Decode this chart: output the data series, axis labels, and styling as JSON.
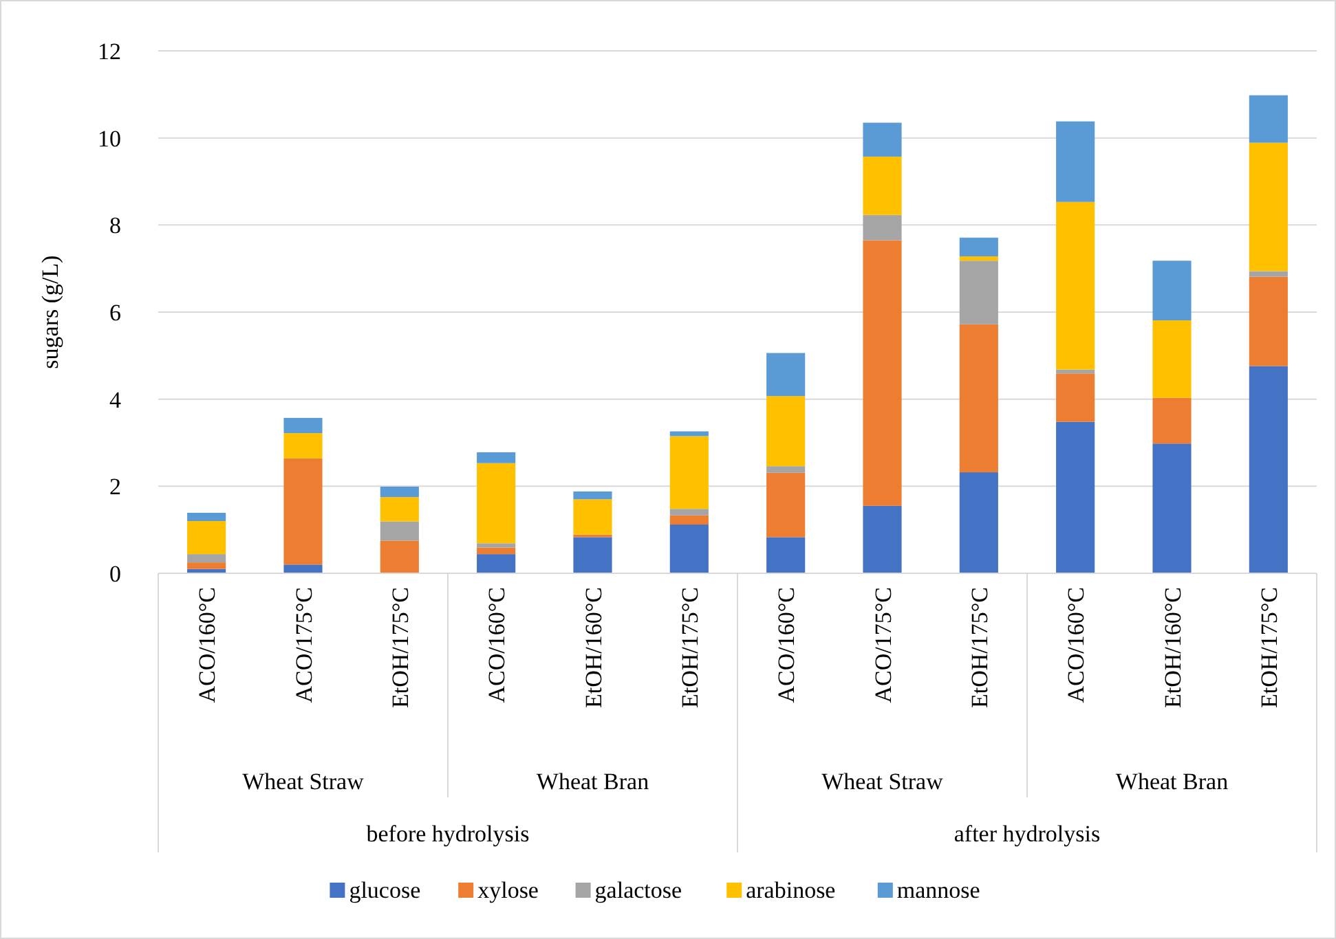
{
  "chart_data": {
    "type": "bar",
    "stacked": true,
    "ylabel": "sugars (g/L)",
    "categories": [
      "ACO/160°C",
      "ACO/175°C",
      "EtOH/175°C",
      "ACO/160°C",
      "EtOH/160°C",
      "EtOH/175°C",
      "ACO/160°C",
      "ACO/175°C",
      "EtOH/175°C",
      "ACO/160°C",
      "EtOH/160°C",
      "EtOH/175°C"
    ],
    "series": [
      {
        "name": "glucose",
        "color": "#4472c4",
        "values": [
          0.1,
          0.2,
          0,
          0.44,
          0.83,
          1.12,
          0.83,
          1.55,
          2.32,
          3.48,
          2.98,
          4.76
        ]
      },
      {
        "name": "xylose",
        "color": "#ed7d31",
        "values": [
          0.15,
          2.44,
          0.75,
          0.15,
          0.06,
          0.21,
          1.48,
          6.1,
          3.4,
          1.11,
          1.05,
          2.05
        ]
      },
      {
        "name": "galactose",
        "color": "#a5a5a5",
        "values": [
          0.19,
          null,
          0.44,
          0.1,
          null,
          0.15,
          0.15,
          0.58,
          1.46,
          0.09,
          null,
          0.13
        ]
      },
      {
        "name": "arabinose",
        "color": "#ffc000",
        "values": [
          0.76,
          0.58,
          0.56,
          1.84,
          0.81,
          1.67,
          1.61,
          1.34,
          0.1,
          3.85,
          1.78,
          2.95
        ]
      },
      {
        "name": "mannose",
        "color": "#5b9bd5",
        "values": [
          0.19,
          0.35,
          0.24,
          0.25,
          0.18,
          0.11,
          0.99,
          0.78,
          0.43,
          1.85,
          1.37,
          1.09
        ]
      }
    ],
    "annotations": [
      "Wheat Straw",
      "Wheat Bran",
      "Wheat Straw",
      "Wheat Bran",
      "before hydrolysis",
      "after hydrolysis"
    ],
    "ylim": [
      0,
      12
    ],
    "yticks": [
      0,
      2,
      4,
      6,
      8,
      10,
      12
    ],
    "grid": "y",
    "legend": "bottom"
  }
}
